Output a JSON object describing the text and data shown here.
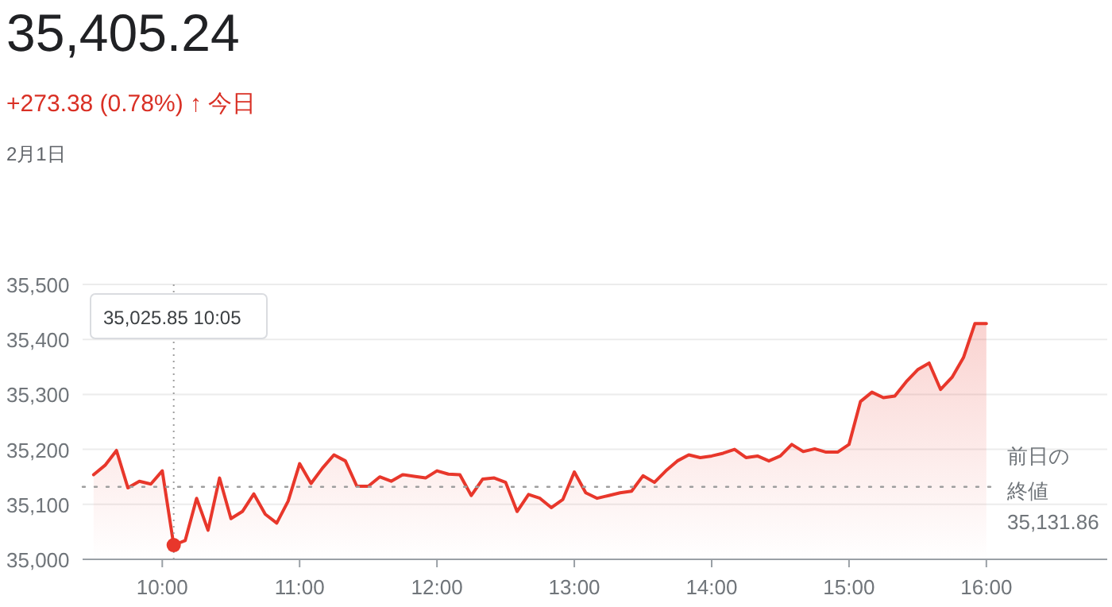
{
  "chart_data": {
    "type": "area",
    "title": "35,405.24",
    "subtitle": "+273.38 (0.78%) ↑ 今日",
    "annotations": [
      "2月1日",
      {
        "text": "35,025.85 10:05",
        "x": 10.0833,
        "y": 35025.85
      },
      "35,131.86"
    ],
    "x": [
      9.5,
      9.5833,
      9.6667,
      9.75,
      9.8333,
      9.9167,
      10,
      10.0833,
      10.1667,
      10.25,
      10.3333,
      10.4167,
      10.5,
      10.5833,
      10.6667,
      10.75,
      10.8333,
      10.9167,
      11,
      11.0833,
      11.1667,
      11.25,
      11.3333,
      11.4167,
      11.5,
      11.5833,
      11.6667,
      11.75,
      11.8333,
      11.9167,
      12,
      12.0833,
      12.1667,
      12.25,
      12.3333,
      12.4167,
      12.5,
      12.5833,
      12.6667,
      12.75,
      12.8333,
      12.9167,
      13,
      13.0833,
      13.1667,
      13.25,
      13.3333,
      13.4167,
      13.5,
      13.5833,
      13.6667,
      13.75,
      13.8333,
      13.9167,
      14,
      14.0833,
      14.1667,
      14.25,
      14.3333,
      14.4167,
      14.5,
      14.5833,
      14.6667,
      14.75,
      14.8333,
      14.9167,
      15,
      15.0833,
      15.1667,
      15.25,
      15.3333,
      15.4167,
      15.5,
      15.5833,
      15.6667,
      15.75,
      15.8333,
      15.9167,
      16
    ],
    "series": [
      {
        "color": "#e8372b",
        "values": [
          35154,
          35171,
          35198,
          35130,
          35142,
          35137,
          35161,
          35026,
          35034,
          35111,
          35053,
          35148,
          35074,
          35087,
          35119,
          35082,
          35066,
          35106,
          35174,
          35138,
          35166,
          35190,
          35179,
          35133,
          35133,
          35150,
          35142,
          35154,
          35151,
          35148,
          35161,
          35155,
          35154,
          35116,
          35146,
          35148,
          35140,
          35087,
          35118,
          35111,
          35094,
          35109,
          35159,
          35121,
          35111,
          35116,
          35121,
          35124,
          35152,
          35140,
          35161,
          35179,
          35190,
          35185,
          35188,
          35193,
          35200,
          35185,
          35188,
          35179,
          35188,
          35209,
          35196,
          35201,
          35195,
          35195,
          35209,
          35287,
          35304,
          35294,
          35297,
          35323,
          35345,
          35357,
          35309,
          35331,
          35367,
          35429,
          35429
        ]
      }
    ],
    "xlim": [
      9.42,
      16.88
    ],
    "ylim": [
      35000,
      35500
    ],
    "xticks": [
      {
        "value": 10,
        "label": "10:00"
      },
      {
        "value": 11,
        "label": "11:00"
      },
      {
        "value": 12,
        "label": "12:00"
      },
      {
        "value": 13,
        "label": "13:00"
      },
      {
        "value": 14,
        "label": "14:00"
      },
      {
        "value": 15,
        "label": "15:00"
      },
      {
        "value": 16,
        "label": "16:00"
      }
    ],
    "yticks": [
      {
        "value": 35000,
        "label": "35,000"
      },
      {
        "value": 35100,
        "label": "35,100"
      },
      {
        "value": 35200,
        "label": "35,200"
      },
      {
        "value": 35300,
        "label": "35,300"
      },
      {
        "value": 35400,
        "label": "35,400"
      },
      {
        "value": 35500,
        "label": "35,500"
      }
    ],
    "grid": "y",
    "ref_lines": [
      {
        "axis": "y",
        "value": 35131.86,
        "label": "前日の終値",
        "line_style": "dotted",
        "color": "#9e9e9e"
      }
    ]
  }
}
